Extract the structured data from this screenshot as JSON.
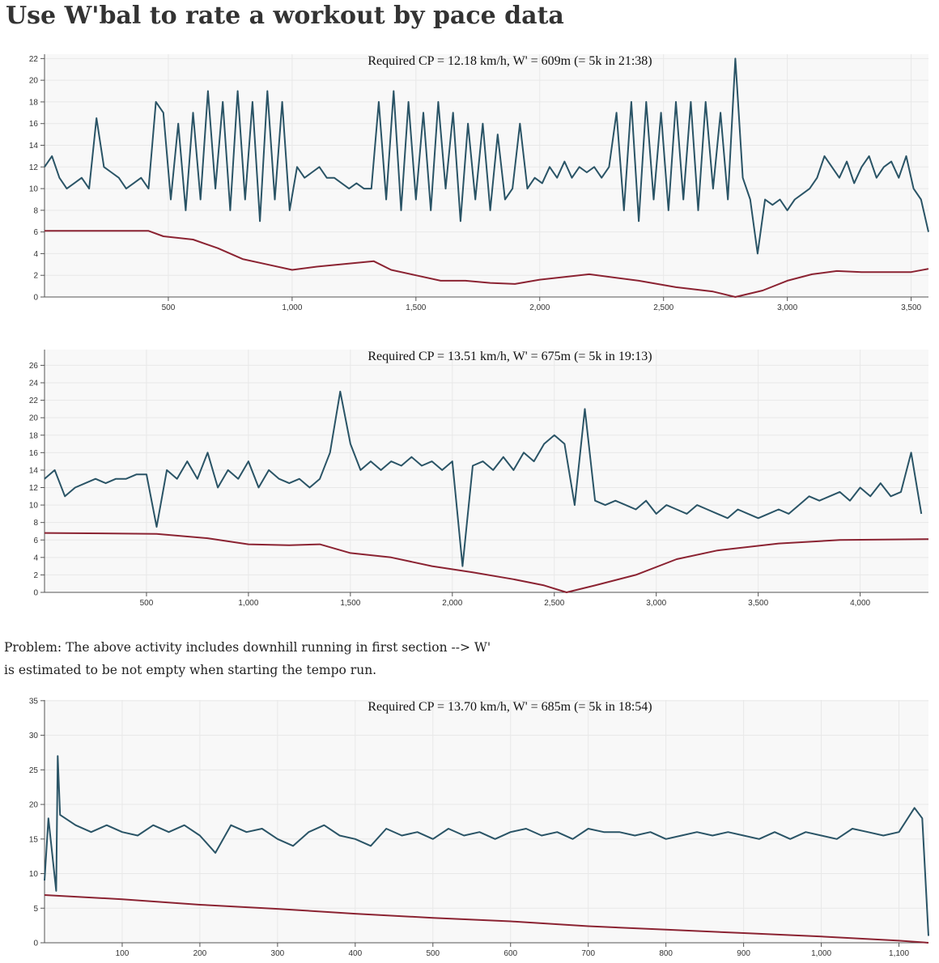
{
  "title": "Use W'bal to rate a workout by pace data",
  "note": "Problem: The above activity includes downhill running in first section --> W' is estimated to be not empty when starting the tempo run.",
  "chart_data": [
    {
      "type": "line",
      "title": "Required CP = 12.18 km/h, W' = 609m (= 5k in 21:38)",
      "xlim": [
        0,
        3570
      ],
      "ylim": [
        0,
        22.4
      ],
      "grid": true,
      "xticks": [
        500,
        {
          "value": 1000,
          "label": "1,000"
        },
        {
          "value": 1500,
          "label": "1,500"
        },
        {
          "value": 2000,
          "label": "2,000"
        },
        {
          "value": 2500,
          "label": "2,500"
        },
        {
          "value": 3000,
          "label": "3,000"
        },
        {
          "value": 3500,
          "label": "3,500"
        }
      ],
      "yticks": [
        0,
        2,
        4,
        6,
        8,
        10,
        12,
        14,
        16,
        18,
        20,
        22
      ],
      "series": [
        {
          "color": "#2a5466",
          "x": [
            0,
            30,
            60,
            90,
            120,
            150,
            180,
            210,
            240,
            270,
            300,
            330,
            360,
            390,
            420,
            450,
            480,
            510,
            540,
            570,
            600,
            630,
            660,
            690,
            720,
            750,
            780,
            810,
            840,
            870,
            900,
            930,
            960,
            990,
            1020,
            1050,
            1080,
            1110,
            1140,
            1170,
            1200,
            1230,
            1260,
            1290,
            1320,
            1350,
            1380,
            1410,
            1440,
            1470,
            1500,
            1530,
            1560,
            1590,
            1620,
            1650,
            1680,
            1710,
            1740,
            1770,
            1800,
            1830,
            1860,
            1890,
            1920,
            1950,
            1980,
            2010,
            2040,
            2070,
            2100,
            2130,
            2160,
            2190,
            2220,
            2250,
            2280,
            2310,
            2340,
            2370,
            2400,
            2430,
            2460,
            2490,
            2520,
            2550,
            2580,
            2610,
            2640,
            2670,
            2700,
            2730,
            2760,
            2790,
            2820,
            2850,
            2880,
            2910,
            2940,
            2970,
            3000,
            3030,
            3060,
            3090,
            3120,
            3150,
            3180,
            3210,
            3240,
            3270,
            3300,
            3330,
            3360,
            3390,
            3420,
            3450,
            3480,
            3510,
            3540,
            3570
          ],
          "values": [
            12,
            13,
            11,
            10,
            10.5,
            11,
            10,
            16.5,
            12,
            11.5,
            11,
            10,
            10.5,
            11,
            10,
            18,
            17,
            9,
            16,
            8,
            17,
            9,
            19,
            10,
            18,
            8,
            19,
            9,
            18,
            7,
            19,
            9,
            18,
            8,
            12,
            11,
            11.5,
            12,
            11,
            11,
            10.5,
            10,
            10.5,
            10,
            10,
            18,
            9,
            19,
            8,
            18,
            9,
            17,
            8,
            18,
            10,
            17,
            7,
            16,
            9,
            16,
            8,
            15,
            9,
            10,
            16,
            10,
            11,
            10.5,
            12,
            11,
            12.5,
            11,
            12,
            11.5,
            12,
            11,
            12,
            17,
            8,
            18,
            7,
            18,
            9,
            17,
            8,
            18,
            9,
            18,
            8,
            18,
            10,
            17,
            9,
            22,
            11,
            9,
            4,
            9,
            8.5,
            9,
            8,
            9,
            9.5,
            10,
            11,
            13,
            12,
            11,
            12.5,
            10.5,
            12,
            13,
            11,
            12,
            12.5,
            11,
            13,
            10,
            9,
            6
          ]
        },
        {
          "color": "#8b2332",
          "x": [
            0,
            420,
            480,
            600,
            700,
            800,
            900,
            1000,
            1100,
            1330,
            1400,
            1500,
            1600,
            1700,
            1800,
            1900,
            2000,
            2200,
            2400,
            2550,
            2700,
            2790,
            2900,
            3000,
            3100,
            3200,
            3300,
            3500,
            3570
          ],
          "values": [
            6.1,
            6.1,
            5.6,
            5.3,
            4.5,
            3.5,
            3,
            2.5,
            2.8,
            3.3,
            2.5,
            2,
            1.5,
            1.5,
            1.3,
            1.2,
            1.6,
            2.1,
            1.5,
            0.9,
            0.5,
            0,
            0.6,
            1.5,
            2.1,
            2.4,
            2.3,
            2.3,
            2.6
          ]
        }
      ]
    },
    {
      "type": "line",
      "title": "Required CP = 13.51 km/h, W' = 675m (= 5k in 19:13)",
      "xlim": [
        0,
        4335
      ],
      "ylim": [
        0,
        27.8
      ],
      "grid": true,
      "xticks": [
        500,
        {
          "value": 1000,
          "label": "1,000"
        },
        {
          "value": 1500,
          "label": "1,500"
        },
        {
          "value": 2000,
          "label": "2,000"
        },
        {
          "value": 2500,
          "label": "2,500"
        },
        {
          "value": 3000,
          "label": "3,000"
        },
        {
          "value": 3500,
          "label": "3,500"
        },
        {
          "value": 4000,
          "label": "4,000"
        }
      ],
      "yticks": [
        0,
        2,
        4,
        6,
        8,
        10,
        12,
        14,
        16,
        18,
        20,
        22,
        24,
        26
      ],
      "series": [
        {
          "color": "#2a5466",
          "x": [
            0,
            50,
            100,
            150,
            200,
            250,
            300,
            350,
            400,
            450,
            500,
            550,
            600,
            650,
            700,
            750,
            800,
            850,
            900,
            950,
            1000,
            1050,
            1100,
            1150,
            1200,
            1250,
            1300,
            1350,
            1400,
            1450,
            1500,
            1550,
            1600,
            1650,
            1700,
            1750,
            1800,
            1850,
            1900,
            1950,
            2000,
            2050,
            2100,
            2150,
            2200,
            2250,
            2300,
            2350,
            2400,
            2450,
            2500,
            2550,
            2600,
            2650,
            2700,
            2750,
            2800,
            2850,
            2900,
            2950,
            3000,
            3050,
            3100,
            3150,
            3200,
            3250,
            3300,
            3350,
            3400,
            3450,
            3500,
            3550,
            3600,
            3650,
            3700,
            3750,
            3800,
            3850,
            3900,
            3950,
            4000,
            4050,
            4100,
            4150,
            4200,
            4250,
            4300
          ],
          "values": [
            13,
            14,
            11,
            12,
            12.5,
            13,
            12.5,
            13,
            13,
            13.5,
            13.5,
            7.5,
            14,
            13,
            15,
            13,
            16,
            12,
            14,
            13,
            15,
            12,
            14,
            13,
            12.5,
            13,
            12,
            13,
            16,
            23,
            17,
            14,
            15,
            14,
            15,
            14.5,
            15.5,
            14.5,
            15,
            14,
            15,
            3,
            14.5,
            15,
            14,
            15.5,
            14,
            16,
            15,
            17,
            18,
            17,
            10,
            21,
            10.5,
            10,
            10.5,
            10,
            9.5,
            10.5,
            9,
            10,
            9.5,
            9,
            10,
            9.5,
            9,
            8.5,
            9.5,
            9,
            8.5,
            9,
            9.5,
            9,
            10,
            11,
            10.5,
            11,
            11.5,
            10.5,
            12,
            11,
            12.5,
            11,
            11.5,
            16,
            9
          ]
        },
        {
          "color": "#8b2332",
          "x": [
            0,
            550,
            800,
            1000,
            1200,
            1350,
            1500,
            1700,
            1900,
            2100,
            2300,
            2450,
            2560,
            2700,
            2900,
            3100,
            3300,
            3600,
            3900,
            4335
          ],
          "values": [
            6.8,
            6.7,
            6.2,
            5.5,
            5.4,
            5.5,
            4.5,
            4,
            3,
            2.3,
            1.5,
            0.8,
            0,
            0.8,
            2,
            3.8,
            4.8,
            5.6,
            6,
            6.1
          ]
        }
      ]
    },
    {
      "type": "line",
      "title": "Required CP = 13.70 km/h, W' = 685m (= 5k in 18:54)",
      "xlim": [
        0,
        1138
      ],
      "ylim": [
        0,
        35.1
      ],
      "grid": true,
      "xticks": [
        100,
        200,
        300,
        400,
        500,
        600,
        700,
        800,
        900,
        {
          "value": 1000,
          "label": "1,000"
        },
        {
          "value": 1100,
          "label": "1,100"
        }
      ],
      "yticks": [
        0,
        5,
        10,
        15,
        20,
        25,
        30,
        35
      ],
      "series": [
        {
          "color": "#2a5466",
          "x": [
            0,
            5,
            15,
            17,
            20,
            40,
            60,
            80,
            100,
            120,
            140,
            160,
            180,
            200,
            220,
            240,
            260,
            280,
            300,
            320,
            340,
            360,
            380,
            400,
            420,
            440,
            460,
            480,
            500,
            520,
            540,
            560,
            580,
            600,
            620,
            640,
            660,
            680,
            700,
            720,
            740,
            760,
            780,
            800,
            820,
            840,
            860,
            880,
            900,
            920,
            940,
            960,
            980,
            1000,
            1020,
            1040,
            1060,
            1080,
            1100,
            1120,
            1130,
            1138
          ],
          "values": [
            9,
            18,
            7.5,
            27,
            18.5,
            17,
            16,
            17,
            16,
            15.5,
            17,
            16,
            17,
            15.5,
            13,
            17,
            16,
            16.5,
            15,
            14,
            16,
            17,
            15.5,
            15,
            14,
            16.5,
            15.5,
            16,
            15,
            16.5,
            15.5,
            16,
            15,
            16,
            16.5,
            15.5,
            16,
            15,
            16.5,
            16,
            16,
            15.5,
            16,
            15,
            15.5,
            16,
            15.5,
            16,
            15.5,
            15,
            16,
            15,
            16,
            15.5,
            15,
            16.5,
            16,
            15.5,
            16,
            19.5,
            18,
            1
          ]
        },
        {
          "color": "#8b2332",
          "x": [
            0,
            100,
            200,
            300,
            400,
            500,
            600,
            700,
            800,
            900,
            1000,
            1100,
            1138
          ],
          "values": [
            6.9,
            6.3,
            5.5,
            4.9,
            4.2,
            3.6,
            3.1,
            2.4,
            1.9,
            1.4,
            0.9,
            0.3,
            0
          ]
        }
      ]
    }
  ]
}
